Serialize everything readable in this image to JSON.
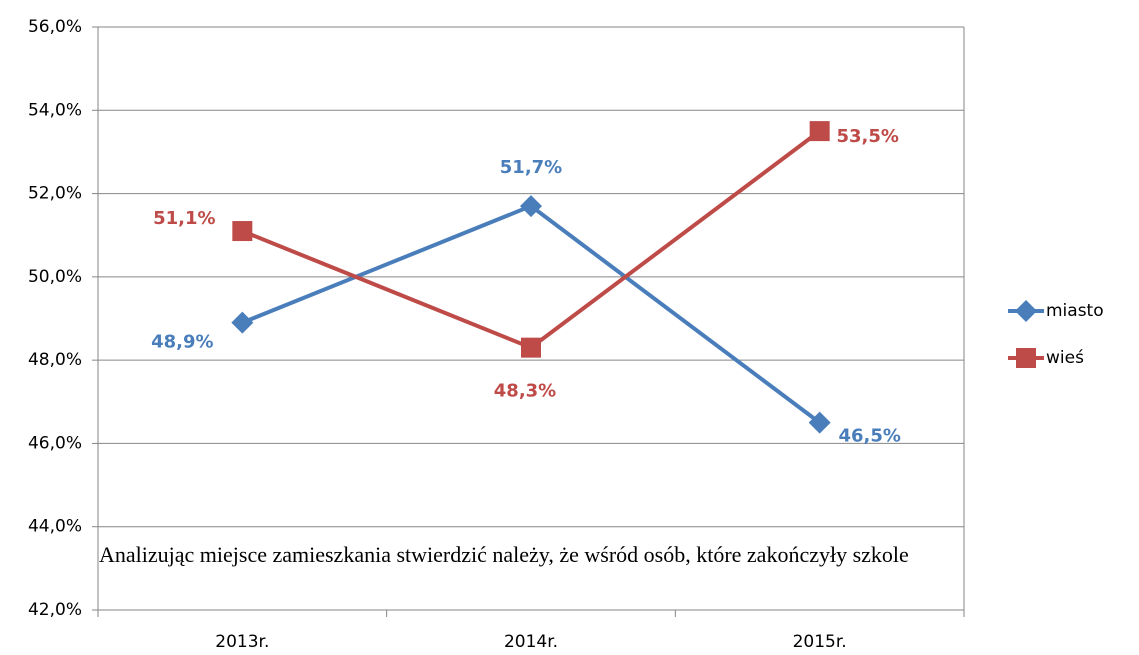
{
  "chart_data": {
    "type": "line",
    "categories": [
      "2013r.",
      "2014r.",
      "2015r."
    ],
    "series": [
      {
        "name": "miasto",
        "color": "#4a7ebb",
        "marker": "diamond",
        "values": [
          48.9,
          51.7,
          46.5
        ],
        "value_labels": [
          "48,9%",
          "51,7%",
          "46,5%"
        ]
      },
      {
        "name": "wieś",
        "color": "#be4b48",
        "marker": "square",
        "values": [
          51.1,
          48.3,
          53.5
        ],
        "value_labels": [
          "51,1%",
          "48,3%",
          "53,5%"
        ]
      }
    ],
    "ylim": [
      42,
      56
    ],
    "yticks": [
      {
        "value": 42,
        "label": "42,0%"
      },
      {
        "value": 44,
        "label": "44,0%"
      },
      {
        "value": 46,
        "label": "46,0%"
      },
      {
        "value": 48,
        "label": "48,0%"
      },
      {
        "value": 50,
        "label": "50,0%"
      },
      {
        "value": 52,
        "label": "52,0%"
      },
      {
        "value": 54,
        "label": "54,0%"
      },
      {
        "value": 56,
        "label": "56,0%"
      }
    ],
    "grid": true,
    "legend": "right"
  },
  "body_text": "Analizując miejsce zamieszkania stwierdzić należy, że wśród osób, które zakończyły szkole"
}
